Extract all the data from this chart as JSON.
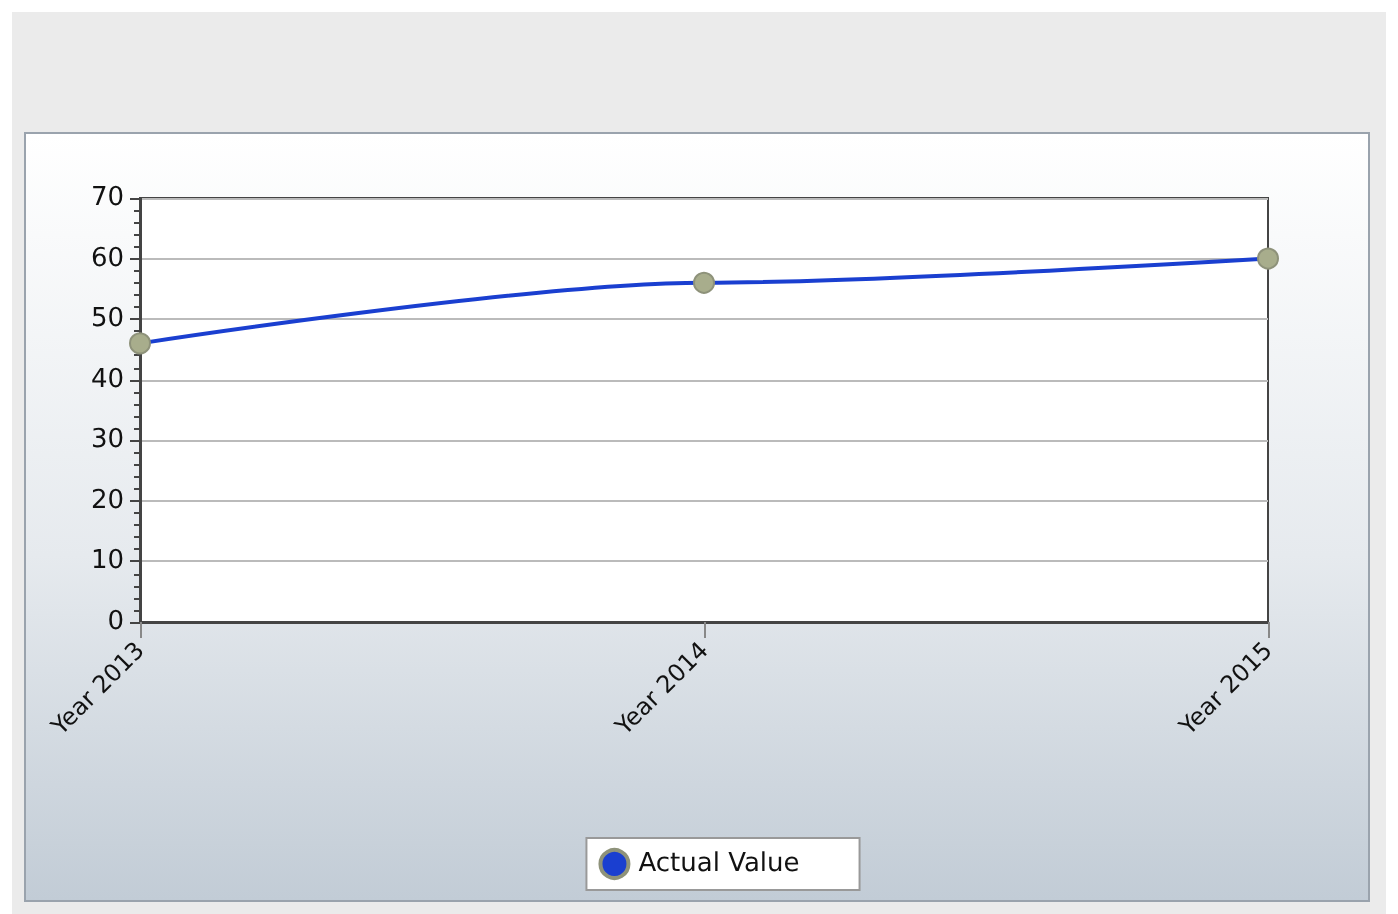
{
  "chart_data": {
    "type": "line",
    "categories": [
      "Year 2013",
      "Year 2014",
      "Year 2015"
    ],
    "series": [
      {
        "name": "Actual Value",
        "color": "#1a3fd0",
        "values": [
          46,
          56,
          60
        ]
      }
    ],
    "ylim": [
      0,
      70
    ],
    "yticks": [
      0,
      10,
      20,
      30,
      40,
      50,
      60,
      70
    ],
    "grid": "y",
    "legend": "bottom",
    "marker": "circle",
    "line_style": "solid"
  }
}
